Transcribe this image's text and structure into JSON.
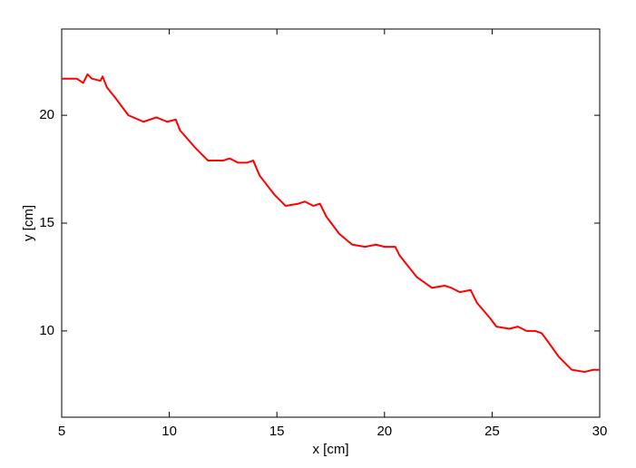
{
  "chart_data": {
    "type": "line",
    "xlabel": "x [cm]",
    "ylabel": "y [cm]",
    "xlim": [
      5,
      30
    ],
    "ylim": [
      6,
      24
    ],
    "xticks": [
      5,
      10,
      15,
      20,
      25,
      30
    ],
    "yticks": [
      10,
      15,
      20
    ],
    "grid": false,
    "series": [
      {
        "color": "#ff0000",
        "x": [
          5,
          5.7,
          6.0,
          6.2,
          6.4,
          6.8,
          6.9,
          7.1,
          7.5,
          8.1,
          8.8,
          9.4,
          9.9,
          10.3,
          10.5,
          11.2,
          11.8,
          12.5,
          12.8,
          13.2,
          13.6,
          13.9,
          14.2,
          14.9,
          15.4,
          16.0,
          16.3,
          16.7,
          17.0,
          17.3,
          17.9,
          18.5,
          19.1,
          19.6,
          20.0,
          20.5,
          20.7,
          21.5,
          22.2,
          22.8,
          23.1,
          23.5,
          24.0,
          24.3,
          24.9,
          25.2,
          25.8,
          26.2,
          26.6,
          27.0,
          27.3,
          27.6,
          28.1,
          28.7,
          29.3,
          29.7,
          30.0
        ],
        "values": [
          21.7,
          21.7,
          21.5,
          21.9,
          21.7,
          21.6,
          21.8,
          21.3,
          20.8,
          20.0,
          19.7,
          19.9,
          19.7,
          19.8,
          19.3,
          18.5,
          17.9,
          17.9,
          18.0,
          17.8,
          17.8,
          17.9,
          17.2,
          16.3,
          15.8,
          15.9,
          16.0,
          15.8,
          15.9,
          15.3,
          14.5,
          14.0,
          13.9,
          14.0,
          13.9,
          13.9,
          13.5,
          12.5,
          12.0,
          12.1,
          12.0,
          11.8,
          11.9,
          11.3,
          10.6,
          10.2,
          10.1,
          10.2,
          10.0,
          10.0,
          9.9,
          9.5,
          8.8,
          8.2,
          8.1,
          8.2,
          8.2
        ]
      }
    ]
  }
}
